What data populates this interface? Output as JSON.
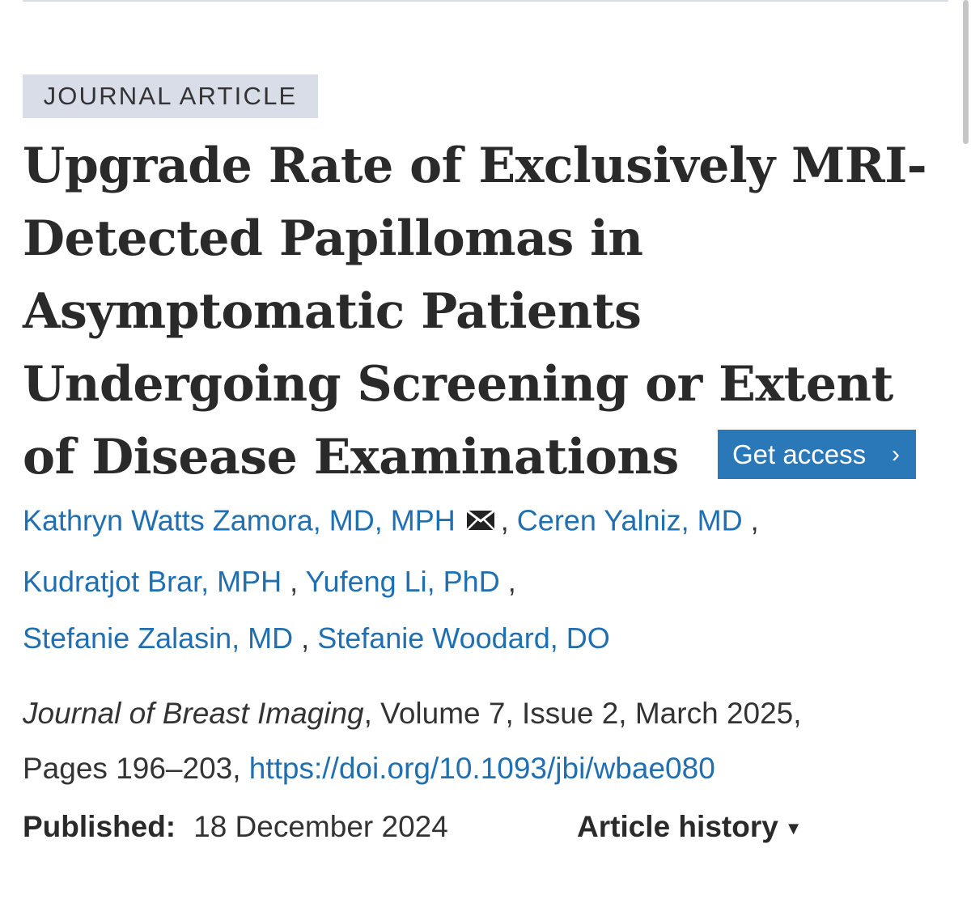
{
  "article": {
    "type_label": "JOURNAL ARTICLE",
    "title_lines": [
      "Upgrade Rate of Exclusively MRI-",
      "Detected Papillomas in",
      "Asymptomatic Patients",
      "Undergoing Screening or Extent",
      "of Disease Examinations"
    ],
    "get_access_label": "Get access",
    "get_access_chevron": "›",
    "authors": [
      "Kathryn Watts Zamora, MD, MPH",
      "Ceren Yalniz, MD",
      "Kudratjot Brar, MPH",
      "Yufeng Li, PhD",
      "Stefanie Zalasin, MD",
      "Stefanie Woodard, DO"
    ],
    "author_separator": ",",
    "corresponding_icon": "envelope-icon",
    "citation": {
      "journal": "Journal of Breast Imaging",
      "details": ", Volume 7, Issue 2, March 2025,",
      "pages": "Pages 196–203, ",
      "doi": "https://doi.org/10.1093/jbi/wbae080"
    },
    "published_label": "Published:",
    "published_date": "18 December 2024",
    "history_label": "Article history",
    "history_icon": "triangle-down-icon"
  },
  "colors": {
    "link": "#1f6fb1",
    "button_bg": "#2a78b8",
    "badge_bg": "#d9dde8",
    "text": "#333333"
  }
}
